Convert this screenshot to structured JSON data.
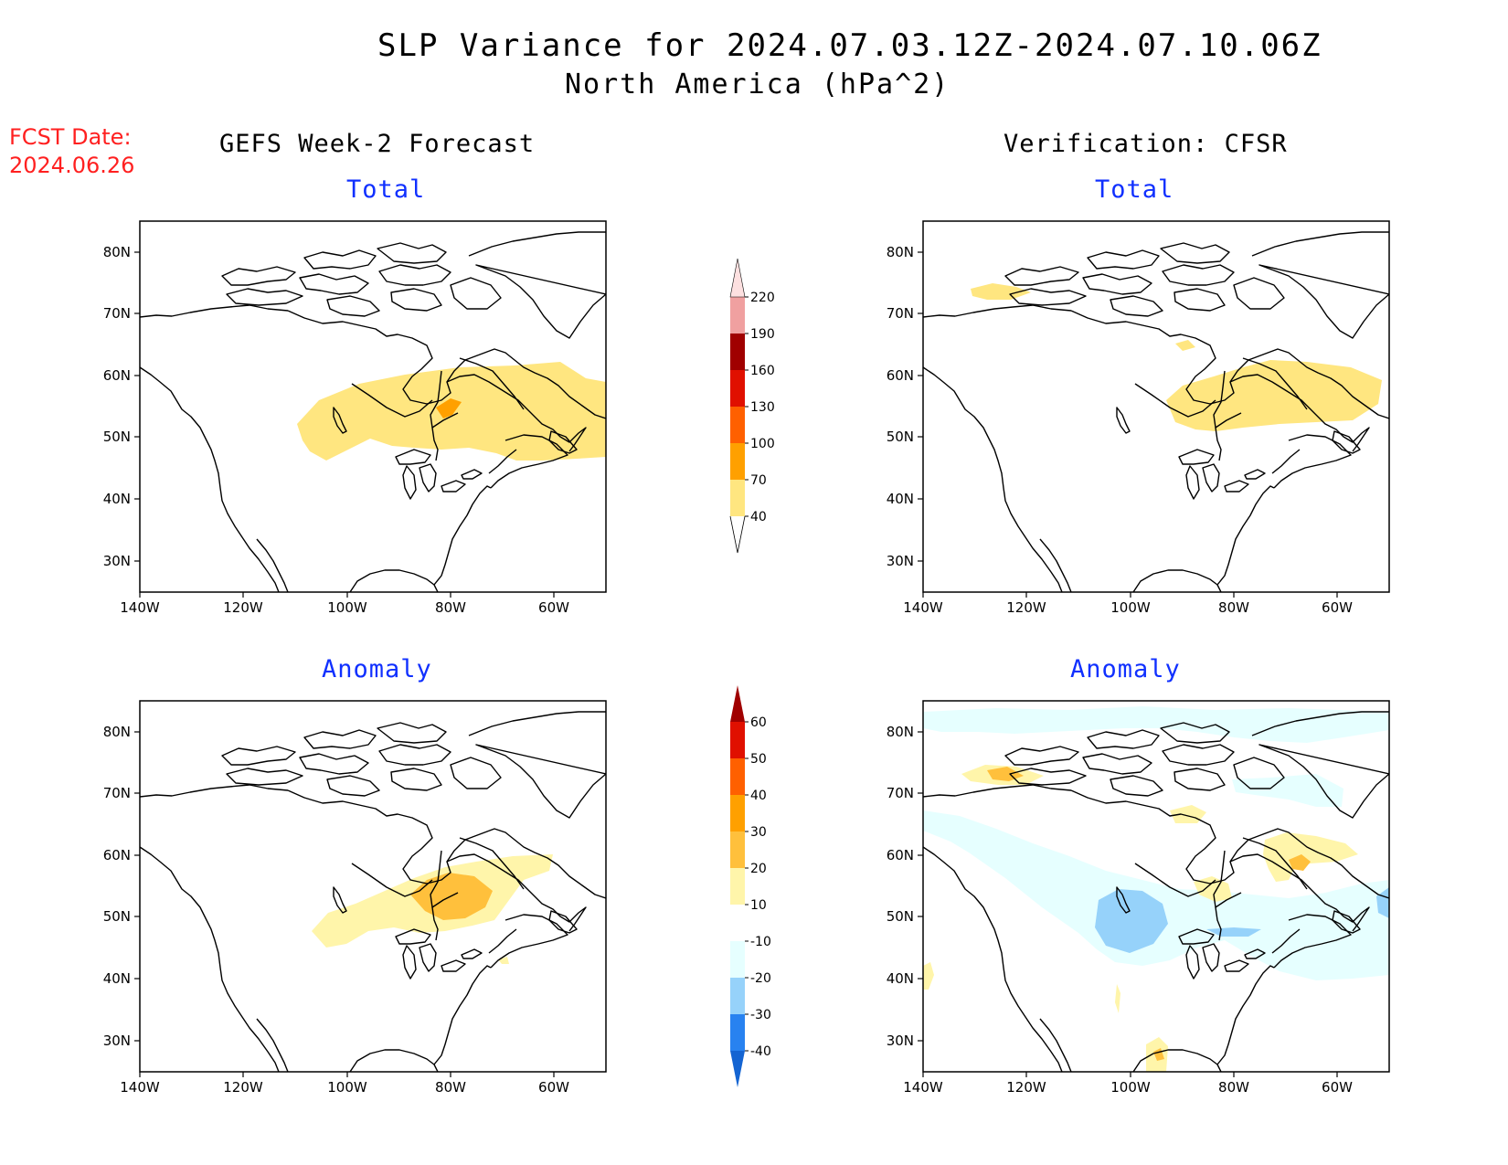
{
  "header": {
    "title": "SLP Variance for 2024.07.03.12Z-2024.07.10.06Z",
    "subtitle": "North America (hPa^2)",
    "fcst_label": "FCST Date:",
    "fcst_date": "2024.06.26"
  },
  "columns": {
    "left_title": "GEFS Week-2 Forecast",
    "right_title": "Verification: CFSR"
  },
  "panels": [
    {
      "id": "gefs-total",
      "subtitle": "Total"
    },
    {
      "id": "cfsr-total",
      "subtitle": "Total"
    },
    {
      "id": "gefs-anomaly",
      "subtitle": "Anomaly"
    },
    {
      "id": "cfsr-anomaly",
      "subtitle": "Anomaly"
    }
  ],
  "axes": {
    "lon_labels": [
      "140W",
      "120W",
      "100W",
      "80W",
      "60W"
    ],
    "lat_labels": [
      "80N",
      "70N",
      "60N",
      "50N",
      "40N",
      "30N"
    ]
  },
  "colorbars": {
    "total": {
      "levels": [
        "40",
        "70",
        "100",
        "130",
        "160",
        "190",
        "220"
      ],
      "colors": [
        "#ffe680",
        "#ffa000",
        "#ff6000",
        "#e01000",
        "#a00000",
        "#f0a0a0",
        "#fde0e0"
      ]
    },
    "anomaly": {
      "levels": [
        "-40",
        "-30",
        "-20",
        "-10",
        "10",
        "20",
        "30",
        "40",
        "50",
        "60"
      ],
      "colors": [
        "#1464d2",
        "#2882f0",
        "#96d2fa",
        "#e6ffff",
        "#ffffff",
        "#fff5aa",
        "#ffc03c",
        "#ffa000",
        "#ff6000",
        "#e01000",
        "#a00000"
      ]
    }
  },
  "colors": {
    "title_red": "#ff2020",
    "subtitle_blue": "#1030ff"
  }
}
